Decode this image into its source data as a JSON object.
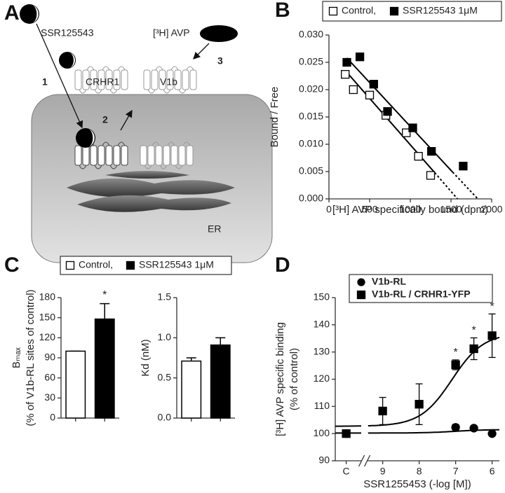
{
  "figure": {
    "panel_labels": [
      "A",
      "B",
      "C",
      "D"
    ]
  },
  "diagram": {
    "drug": "SSR125543",
    "ligand": "[³H] AVP",
    "receptor1": "CRHR1",
    "receptor2": "V1b",
    "steps": [
      "1",
      "2",
      "3"
    ],
    "organelle": "ER"
  },
  "chart_data": [
    {
      "type": "scatter",
      "x_label": "[³H] AVP specifically bound (dpm)",
      "y_label": "Bound / Free",
      "xlim": [
        0,
        2000
      ],
      "xticks": [
        0,
        500,
        1000,
        1500,
        2000
      ],
      "ylim": [
        0,
        0.03
      ],
      "yticks": [
        {
          "value": 0,
          "label": "0.000"
        },
        {
          "value": 0.005,
          "label": "0.005"
        },
        {
          "value": 0.01,
          "label": "0.010"
        },
        {
          "value": 0.015,
          "label": "0.015"
        },
        {
          "value": 0.02,
          "label": "0.020"
        },
        {
          "value": 0.025,
          "label": "0.025"
        },
        {
          "value": 0.03,
          "label": "0.030"
        }
      ],
      "legend_frame": true,
      "series": [
        {
          "name": "Control,",
          "color": "#000000",
          "marker": "square",
          "filled": false,
          "x": [
            200,
            300,
            500,
            700,
            950,
            1100,
            1250
          ],
          "values": [
            0.0228,
            0.02,
            0.019,
            0.0153,
            0.0121,
            0.0078,
            0.0043
          ],
          "fit_x": [
            200,
            1300,
            1580
          ],
          "fit_y": [
            0.0235,
            0.0048,
            0
          ]
        },
        {
          "name": "SSR125543 1μM",
          "color": "#000000",
          "marker": "square",
          "filled": true,
          "x": [
            220,
            380,
            550,
            720,
            1030,
            1260,
            1650
          ],
          "values": [
            0.025,
            0.026,
            0.021,
            0.016,
            0.013,
            0.0087,
            0.006
          ],
          "fit_x": [
            220,
            1520,
            1830
          ],
          "fit_y": [
            0.0258,
            0.0049,
            0
          ]
        }
      ]
    },
    {
      "type": "bar",
      "y_label": [
        "Bₘₐₓ",
        "(% of V1b-RL sites of control)"
      ],
      "ylim": [
        0,
        180
      ],
      "yticks": [
        0,
        30,
        60,
        90,
        120,
        150,
        180
      ],
      "categories": [
        null,
        null
      ],
      "values": [
        100,
        148
      ],
      "errors": [
        0,
        23
      ],
      "colors": [
        "#ffffff",
        "#000000"
      ],
      "annotations": [
        null,
        "*"
      ],
      "legend": [
        {
          "name": "Control,",
          "color": "#ffffff"
        },
        {
          "name": "SSR125543 1μM",
          "color": "#000000"
        }
      ]
    },
    {
      "type": "bar",
      "y_label": [
        "Kd (nM)"
      ],
      "ylim": [
        0,
        1.5
      ],
      "yticks": [
        {
          "value": 0,
          "label": "0.0"
        },
        0.5,
        {
          "value": 1,
          "label": "1.0"
        },
        1.5
      ],
      "categories": [
        null,
        null
      ],
      "values": [
        0.71,
        0.91
      ],
      "errors": [
        0.04,
        0.09
      ],
      "colors": [
        "#ffffff",
        "#000000"
      ]
    },
    {
      "type": "scatter",
      "x_label": "SSR1255453 (-log [M])",
      "y_label": [
        "[³H] AVP specific binding",
        "(% of control)"
      ],
      "xlim": [
        10.3,
        5.8
      ],
      "xticks": [
        {
          "value": 10,
          "label": "C"
        },
        9,
        8,
        7,
        6
      ],
      "x_break": true,
      "ylim": [
        90,
        150
      ],
      "yticks": [
        90,
        100,
        110,
        120,
        130,
        140,
        150
      ],
      "legend_frame": true,
      "legend_bold": true,
      "series": [
        {
          "name": "V1b-RL",
          "color": "#000000",
          "marker": "circle",
          "filled": true,
          "x": [
            10,
            7,
            6.5,
            6
          ],
          "values": [
            100,
            102.3,
            102,
            100
          ],
          "errors": [
            0,
            1,
            0,
            0
          ],
          "fit": {
            "bottom": 100.2,
            "top": 101.5,
            "log_ec50": 7,
            "hill": 1
          }
        },
        {
          "name": "V1b-RL / CRHR1-YFP",
          "color": "#000000",
          "marker": "square",
          "filled": true,
          "x": [
            10,
            9,
            8,
            7,
            6.5,
            6
          ],
          "values": [
            100,
            108.3,
            110.8,
            125.3,
            131.2,
            136
          ],
          "errors": [
            0,
            5,
            7.5,
            1.8,
            4,
            8
          ],
          "annotations": [
            null,
            null,
            null,
            "*",
            "*",
            "*"
          ],
          "fit": {
            "bottom": 102.7,
            "top": 137,
            "log_ec50": 7.1,
            "hill": 1
          }
        }
      ]
    }
  ]
}
